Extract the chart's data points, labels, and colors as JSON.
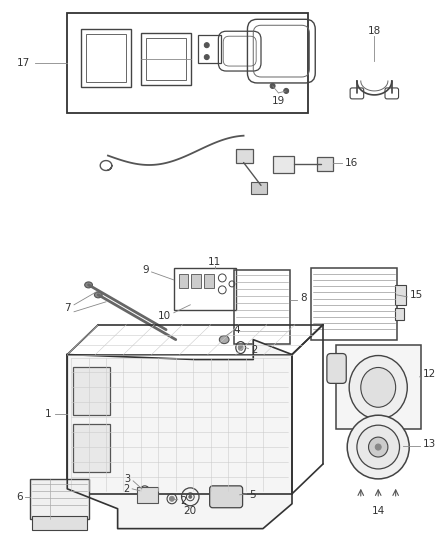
{
  "background_color": "#ffffff",
  "fig_width": 4.38,
  "fig_height": 5.33,
  "dpi": 100,
  "line_color": "#444444",
  "text_color": "#333333",
  "font_size": 7.5,
  "leader_color": "#888888"
}
